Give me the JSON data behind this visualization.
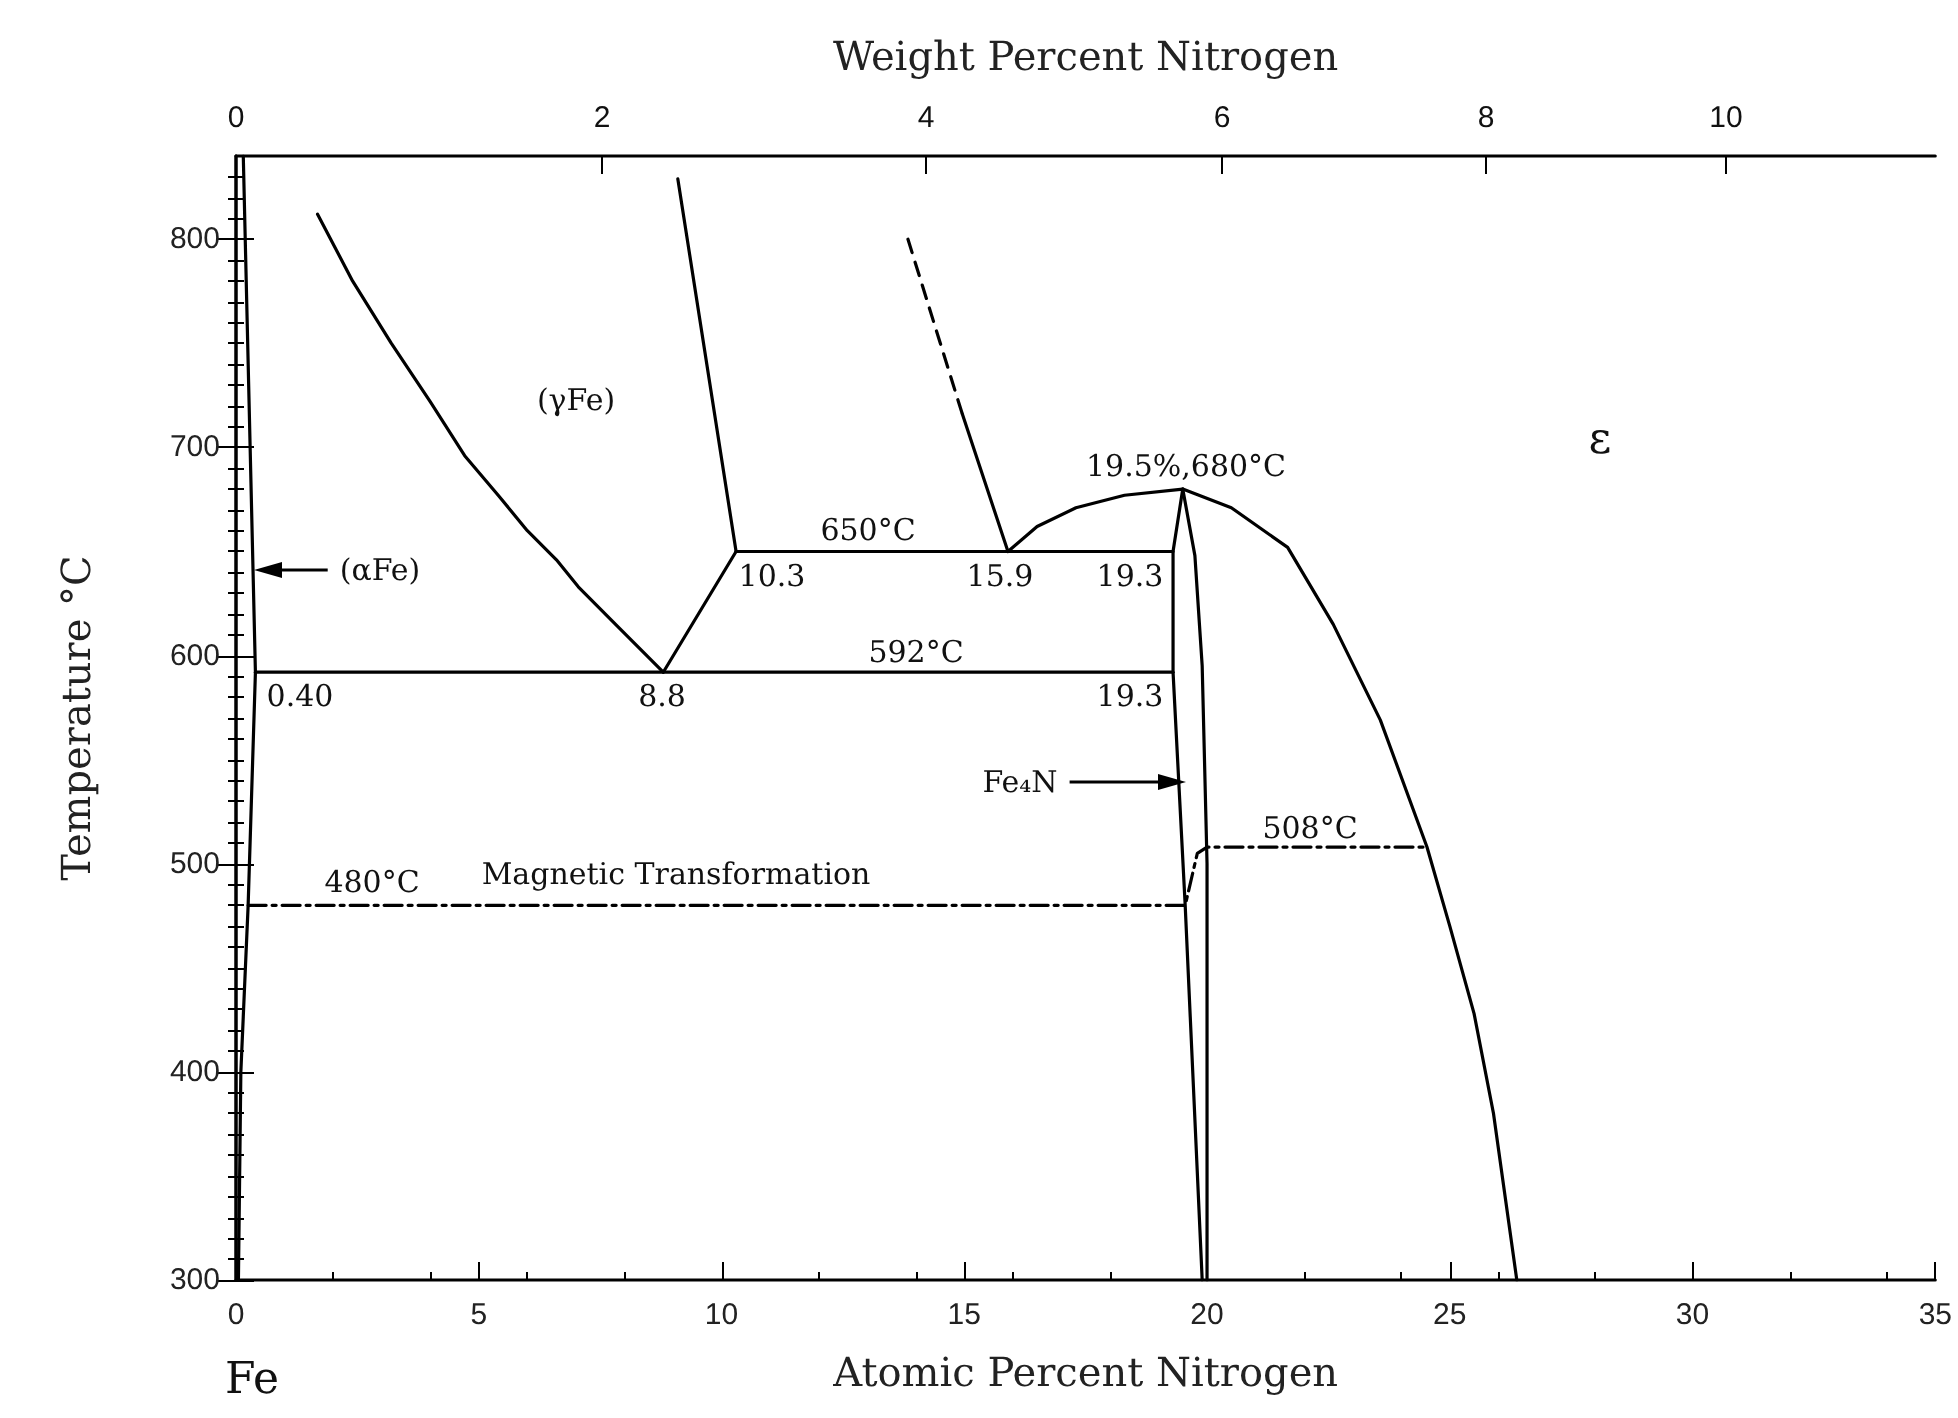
{
  "chart_data": {
    "type": "line",
    "xlabel": "Atomic Percent Nitrogen",
    "ylabel": "Temperature °C",
    "x2label": "Weight Percent Nitrogen",
    "xlim": [
      0,
      35
    ],
    "xticks": [
      0,
      5,
      10,
      15,
      20,
      25,
      30,
      35
    ],
    "ylim": [
      300,
      840
    ],
    "yticks": [
      300,
      400,
      500,
      600,
      700,
      800
    ],
    "grid": false,
    "marker": "none",
    "series": [
      {
        "color": "#000000",
        "line_style": "solid",
        "x": [
          0.15,
          0.4,
          0.25,
          0.1,
          0.05
        ],
        "values": [
          840,
          592,
          480,
          400,
          300
        ]
      },
      {
        "color": "#000000",
        "line_style": "solid",
        "x": [
          1.68,
          2.4,
          3.2,
          4.0,
          4.71,
          5.4,
          6.0,
          6.6,
          7.05,
          7.9,
          8.8
        ],
        "values": [
          812,
          780,
          750,
          722,
          696,
          677,
          660,
          646,
          633,
          613,
          592
        ]
      },
      {
        "color": "#000000",
        "line_style": "solid",
        "x": [
          8.8,
          10.3
        ],
        "values": [
          592,
          650
        ]
      },
      {
        "color": "#000000",
        "line_style": "solid",
        "x": [
          9.1,
          10.3
        ],
        "values": [
          829,
          650
        ]
      },
      {
        "color": "#000000",
        "line_style": "dashed",
        "x": [
          13.84,
          14.96
        ],
        "values": [
          800,
          716
        ]
      },
      {
        "color": "#000000",
        "line_style": "solid",
        "x": [
          14.96,
          15.9
        ],
        "values": [
          716,
          650
        ]
      },
      {
        "color": "#000000",
        "line_style": "solid",
        "x": [
          10.3,
          19.3
        ],
        "values": [
          650,
          650
        ]
      },
      {
        "color": "#000000",
        "line_style": "solid",
        "x": [
          0.4,
          19.3
        ],
        "values": [
          592,
          592
        ]
      },
      {
        "color": "#000000",
        "line_style": "solid",
        "x": [
          19.5,
          19.3,
          19.3,
          19.55,
          19.9
        ],
        "values": [
          680,
          650,
          592,
          480,
          300
        ]
      },
      {
        "color": "#000000",
        "line_style": "solid",
        "x": [
          19.5,
          19.75,
          19.9,
          20.0,
          20.0
        ],
        "values": [
          680,
          648,
          595,
          500,
          300
        ]
      },
      {
        "color": "#000000",
        "line_style": "solid",
        "x": [
          15.9,
          16.5,
          17.3,
          18.3,
          19.5,
          20.5,
          21.66,
          22.6,
          23.57,
          24.53,
          25.0,
          25.5,
          25.9,
          26.38
        ],
        "values": [
          650,
          662,
          671,
          677,
          680,
          671,
          652,
          615,
          569,
          508,
          470,
          428,
          380,
          300
        ]
      },
      {
        "color": "#000000",
        "line_style": "dashdot",
        "x": [
          0.25,
          19.55,
          19.8,
          20.0,
          24.55
        ],
        "values": [
          480,
          480,
          505,
          508,
          508
        ]
      }
    ],
    "annotations": [
      "(αFe)",
      "(γFe)",
      "ε",
      "650°C",
      "10.3",
      "15.9",
      "19.3",
      "19.5%,680°C",
      "0.40",
      "8.8",
      "592°C",
      "19.3",
      "Fe₄N",
      "508°C",
      "480°C",
      "Magnetic Transformation",
      "Fe",
      "0",
      "2",
      "4",
      "6",
      "8",
      "10"
    ]
  }
}
